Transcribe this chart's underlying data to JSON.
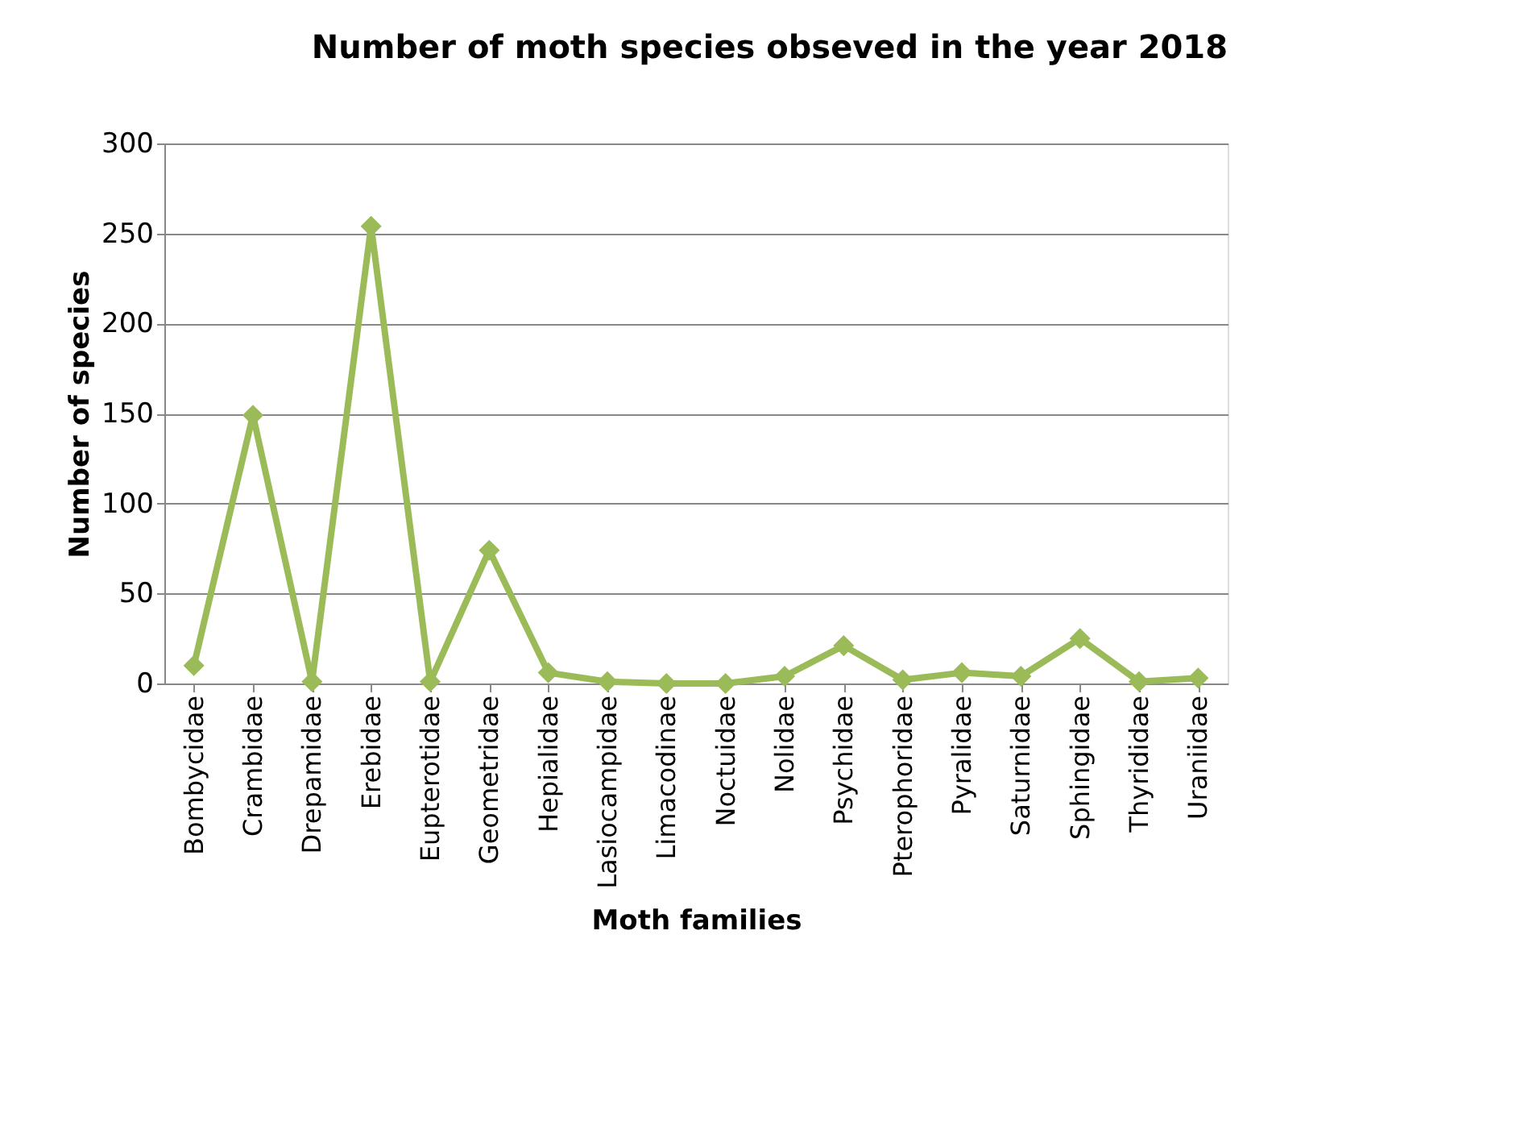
{
  "chart_data": {
    "type": "line",
    "title": "Number of moth species  obseved in the year 2018",
    "xlabel": "Moth families",
    "ylabel": "Number of species",
    "categories": [
      "Bombycidae",
      "Crambidae",
      "Drepamidae",
      "Erebidae",
      "Eupterotidae",
      "Geometridae",
      "Hepialidae",
      "Lasiocampidae",
      "Limacodinae",
      "Noctuidae",
      "Nolidae",
      "Psychidae",
      "Pterophoridae",
      "Pyralidae",
      "Saturnidae",
      "Sphingidae",
      "Thyrididae",
      "Uraniidae"
    ],
    "series": [
      {
        "color": "#9bbb59",
        "values": [
          10,
          149,
          1,
          254,
          1,
          74,
          6,
          1,
          0,
          0,
          4,
          21,
          2,
          6,
          4,
          25,
          1,
          3
        ]
      }
    ],
    "ylim": [
      0,
      300
    ],
    "yticks": [
      0,
      50,
      100,
      150,
      200,
      250,
      300
    ],
    "grid": "y",
    "marker": "diamond",
    "line_style": "solid"
  }
}
